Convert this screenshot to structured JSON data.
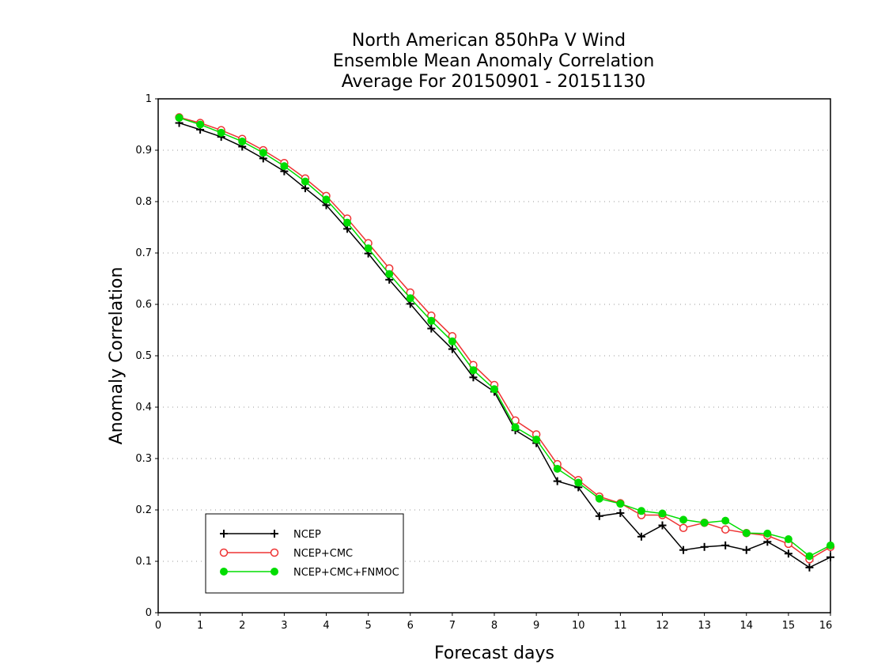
{
  "chart_data": {
    "type": "line",
    "title": [
      "North American 850hPa V Wind",
      "Ensemble Mean Anomaly Correlation",
      "Average For 20150901 - 20151130"
    ],
    "xlabel": "Forecast days",
    "ylabel": "Anomaly Correlation",
    "xlim": [
      0,
      16
    ],
    "ylim": [
      0,
      1
    ],
    "x_ticks": [
      "0",
      "1",
      "2",
      "3",
      "4",
      "5",
      "6",
      "7",
      "8",
      "9",
      "10",
      "11",
      "12",
      "13",
      "14",
      "15",
      "16"
    ],
    "y_ticks": [
      "0",
      "0.1",
      "0.2",
      "0.3",
      "0.4",
      "0.5",
      "0.6",
      "0.7",
      "0.8",
      "0.9",
      "1"
    ],
    "grid": "horizontal dotted",
    "legend_placement": "bottom-left",
    "x": [
      0.5,
      1,
      1.5,
      2,
      2.5,
      3,
      3.5,
      4,
      4.5,
      5,
      5.5,
      6,
      6.5,
      7,
      7.5,
      8,
      8.5,
      9,
      9.5,
      10,
      10.5,
      11,
      11.5,
      12,
      12.5,
      13,
      13.5,
      14,
      14.5,
      15,
      15.5,
      16
    ],
    "series": [
      {
        "name": "NCEP",
        "color": "#000000",
        "marker": "plus",
        "values": [
          0.953,
          0.94,
          0.926,
          0.907,
          0.884,
          0.859,
          0.826,
          0.793,
          0.747,
          0.699,
          0.648,
          0.601,
          0.553,
          0.513,
          0.458,
          0.43,
          0.355,
          0.33,
          0.256,
          0.244,
          0.188,
          0.194,
          0.148,
          0.17,
          0.122,
          0.128,
          0.131,
          0.122,
          0.138,
          0.115,
          0.088,
          0.108
        ]
      },
      {
        "name": "NCEP+CMC",
        "color": "#ee3333",
        "marker": "open-circle",
        "values": [
          0.964,
          0.953,
          0.939,
          0.922,
          0.9,
          0.875,
          0.845,
          0.811,
          0.767,
          0.719,
          0.67,
          0.623,
          0.578,
          0.538,
          0.482,
          0.443,
          0.374,
          0.347,
          0.289,
          0.258,
          0.226,
          0.213,
          0.19,
          0.19,
          0.165,
          0.175,
          0.162,
          0.155,
          0.15,
          0.134,
          0.104,
          0.128
        ]
      },
      {
        "name": "NCEP+CMC+FNMOC",
        "color": "#00dd00",
        "marker": "filled-circle",
        "values": [
          0.963,
          0.95,
          0.934,
          0.917,
          0.895,
          0.869,
          0.839,
          0.804,
          0.759,
          0.709,
          0.659,
          0.612,
          0.568,
          0.528,
          0.472,
          0.435,
          0.361,
          0.337,
          0.28,
          0.253,
          0.222,
          0.212,
          0.198,
          0.193,
          0.181,
          0.175,
          0.179,
          0.155,
          0.154,
          0.143,
          0.11,
          0.131
        ]
      }
    ]
  }
}
